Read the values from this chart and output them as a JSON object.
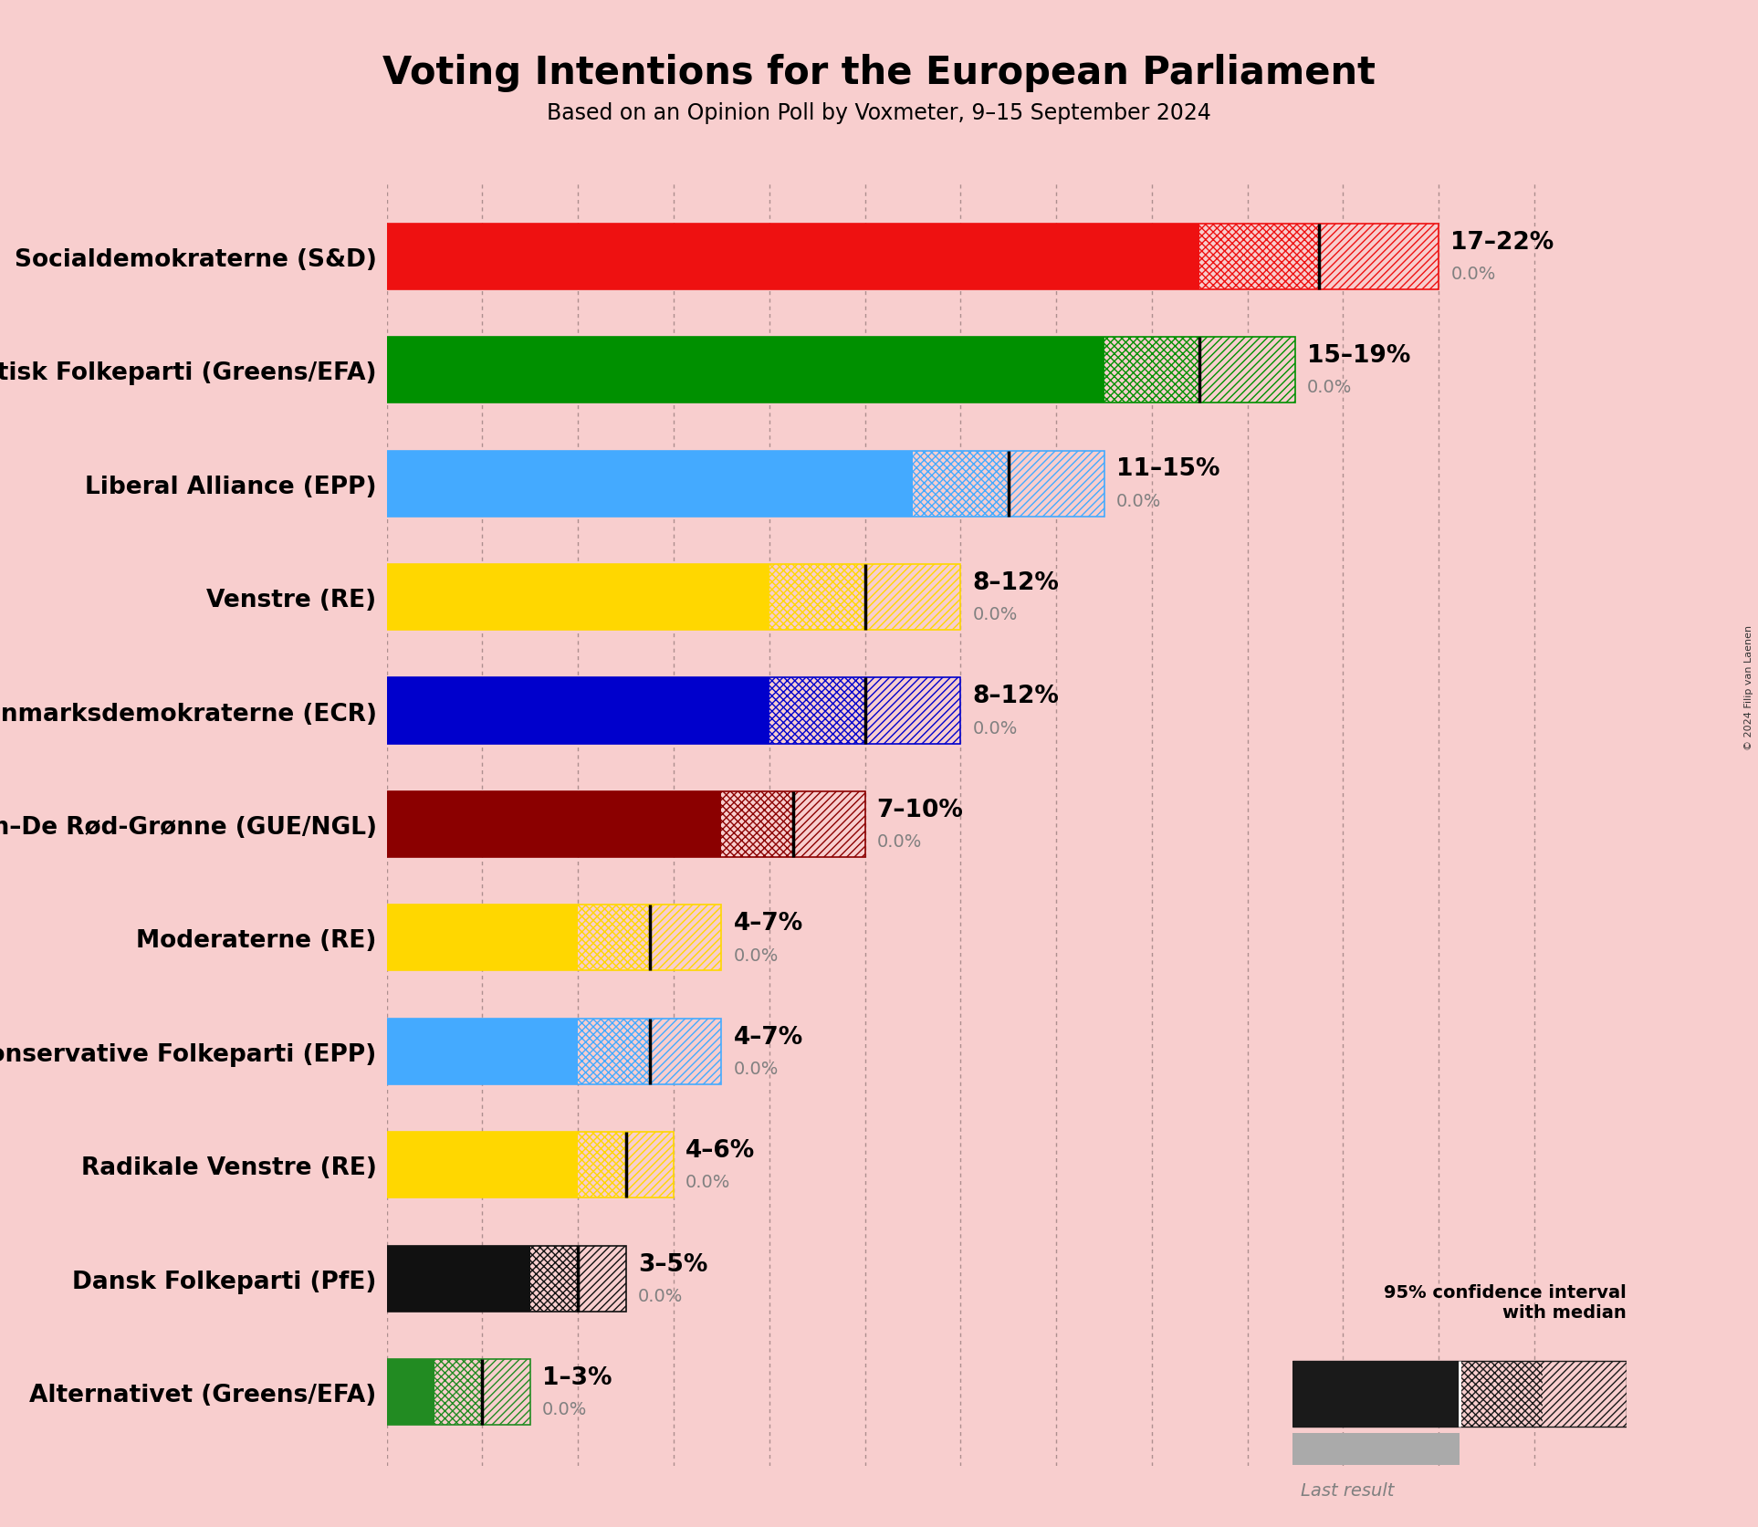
{
  "title": "Voting Intentions for the European Parliament",
  "subtitle": "Based on an Opinion Poll by Voxmeter, 9–15 September 2024",
  "background_color": "#f8cece",
  "parties": [
    {
      "name": "Socialdemokraterne (S&D)",
      "low": 17,
      "median": 19.5,
      "high": 22,
      "last": 0.0,
      "color": "#EE1111"
    },
    {
      "name": "Socialistisk Folkeparti (Greens/EFA)",
      "low": 15,
      "median": 17,
      "high": 19,
      "last": 0.0,
      "color": "#009000"
    },
    {
      "name": "Liberal Alliance (EPP)",
      "low": 11,
      "median": 13,
      "high": 15,
      "last": 0.0,
      "color": "#44AAFF"
    },
    {
      "name": "Venstre (RE)",
      "low": 8,
      "median": 10,
      "high": 12,
      "last": 0.0,
      "color": "#FFD700"
    },
    {
      "name": "Danmarksdemokraterne (ECR)",
      "low": 8,
      "median": 10,
      "high": 12,
      "last": 0.0,
      "color": "#0000CC"
    },
    {
      "name": "Enhedslisten–De Rød-Grønne (GUE/NGL)",
      "low": 7,
      "median": 8.5,
      "high": 10,
      "last": 0.0,
      "color": "#8B0000"
    },
    {
      "name": "Moderaterne (RE)",
      "low": 4,
      "median": 5.5,
      "high": 7,
      "last": 0.0,
      "color": "#FFD700"
    },
    {
      "name": "Det Konservative Folkeparti (EPP)",
      "low": 4,
      "median": 5.5,
      "high": 7,
      "last": 0.0,
      "color": "#44AAFF"
    },
    {
      "name": "Radikale Venstre (RE)",
      "low": 4,
      "median": 5,
      "high": 6,
      "last": 0.0,
      "color": "#FFD700"
    },
    {
      "name": "Dansk Folkeparti (PfE)",
      "low": 3,
      "median": 4,
      "high": 5,
      "last": 0.0,
      "color": "#111111"
    },
    {
      "name": "Alternativet (Greens/EFA)",
      "low": 1,
      "median": 2,
      "high": 3,
      "last": 0.0,
      "color": "#228B22"
    }
  ],
  "xlim": [
    0,
    25
  ],
  "bar_height": 0.58,
  "title_fontsize": 30,
  "subtitle_fontsize": 17,
  "label_fontsize": 19,
  "range_fontsize": 19,
  "last_fontsize": 14,
  "grid_color": "#000000",
  "grid_alpha": 0.3,
  "tick_positions": [
    0,
    2,
    4,
    6,
    8,
    10,
    12,
    14,
    16,
    18,
    20,
    22,
    24
  ],
  "copyright_text": "© 2024 Filip van Laenen"
}
